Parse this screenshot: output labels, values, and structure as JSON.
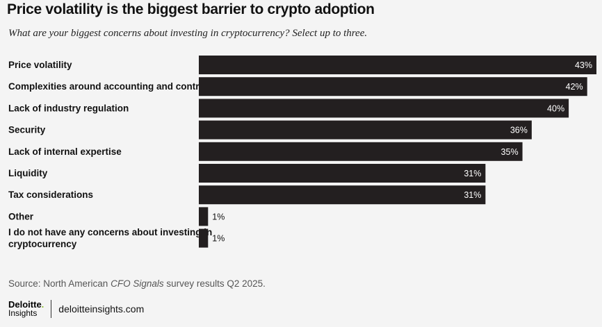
{
  "title": "Price volatility is the biggest barrier to crypto adoption",
  "subtitle": "What are your biggest concerns about investing in cryptocurrency? Select up to three.",
  "source": {
    "prefix": "Source: North American ",
    "italic": "CFO Signals",
    "suffix": " survey results Q2 2025."
  },
  "footer": {
    "logo_main": "Deloitte",
    "logo_dot": ".",
    "logo_sub": "Insights",
    "site": "deloitteinsights.com"
  },
  "colors": {
    "bar": "#231f20",
    "background": "#f4f4f4",
    "logo_dot": "#86bc25"
  },
  "chart_data": {
    "type": "bar",
    "orientation": "horizontal",
    "categories": [
      [
        "Price volatility"
      ],
      [
        "Complexities around accounting and controls"
      ],
      [
        "Lack of industry regulation"
      ],
      [
        "Security"
      ],
      [
        "Lack of internal expertise"
      ],
      [
        "Liquidity"
      ],
      [
        "Tax considerations"
      ],
      [
        "Other"
      ],
      [
        "I do not have any concerns about investing in",
        "cryptocurrency"
      ]
    ],
    "values": [
      43,
      42,
      40,
      36,
      35,
      31,
      31,
      1,
      1
    ],
    "value_labels": [
      "43%",
      "42%",
      "40%",
      "36%",
      "35%",
      "31%",
      "31%",
      "1%",
      "1%"
    ],
    "xlim": [
      0,
      43
    ],
    "unit": "%"
  }
}
